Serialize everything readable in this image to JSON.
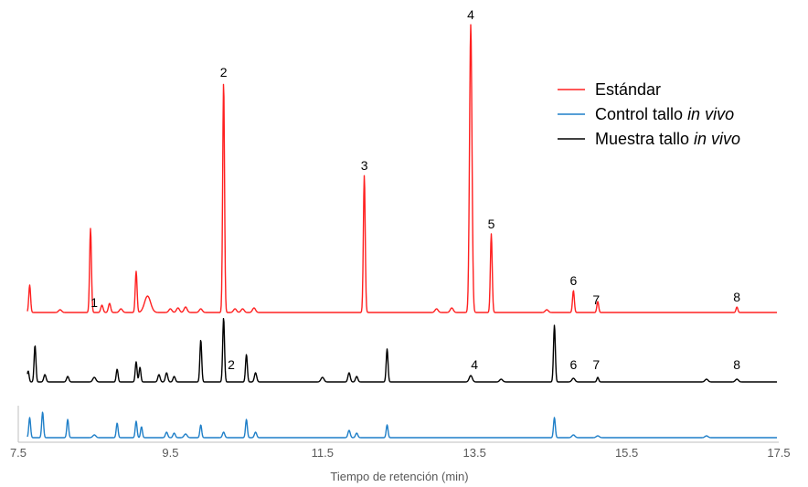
{
  "chart_data": {
    "type": "line",
    "title": "",
    "xlabel": "Tiempo de retención (min)",
    "ylabel": "",
    "xlim": [
      7.5,
      17.5
    ],
    "x_ticks": [
      7.5,
      9.5,
      11.5,
      13.5,
      15.5,
      17.5
    ],
    "x_tick_labels": [
      "7.5",
      "9.5",
      "11.5",
      "13.5",
      "15.5",
      "17.5"
    ],
    "grid": false,
    "legend_position": "top-right",
    "colors": {
      "estandar": "#ff2020",
      "control": "#1f7fc8",
      "muestra": "#000000"
    },
    "legend": [
      {
        "series": "estandar",
        "text": "Estándar",
        "italic": ""
      },
      {
        "series": "control",
        "text": "Control tallo ",
        "italic": "in vivo"
      },
      {
        "series": "muestra",
        "text": "Muestra tallo ",
        "italic": "in vivo"
      }
    ],
    "series": [
      {
        "key": "estandar",
        "name": "Estándar",
        "baseline": 342,
        "peaks": [
          [
            7.65,
            30,
            0.012
          ],
          [
            8.05,
            3,
            0.02
          ],
          [
            8.45,
            92,
            0.012
          ],
          [
            8.6,
            8,
            0.015
          ],
          [
            8.7,
            10,
            0.015
          ],
          [
            8.85,
            4,
            0.02
          ],
          [
            9.05,
            45,
            0.012
          ],
          [
            9.2,
            18,
            0.04
          ],
          [
            9.5,
            4,
            0.02
          ],
          [
            9.6,
            5,
            0.02
          ],
          [
            9.7,
            6,
            0.02
          ],
          [
            9.9,
            4,
            0.02
          ],
          [
            10.2,
            252,
            0.012
          ],
          [
            10.35,
            4,
            0.02
          ],
          [
            10.45,
            4,
            0.02
          ],
          [
            10.6,
            5,
            0.02
          ],
          [
            12.05,
            150,
            0.012
          ],
          [
            13.0,
            4,
            0.02
          ],
          [
            13.2,
            5,
            0.02
          ],
          [
            13.45,
            315,
            0.016
          ],
          [
            13.72,
            86,
            0.012
          ],
          [
            14.45,
            3,
            0.02
          ],
          [
            14.8,
            24,
            0.012
          ],
          [
            15.12,
            12,
            0.012
          ],
          [
            16.95,
            6,
            0.012
          ]
        ],
        "peak_labels": [
          {
            "t": "1",
            "x": 8.5,
            "dy": -6
          },
          {
            "t": "2",
            "x": 10.2,
            "dy": -6
          },
          {
            "t": "3",
            "x": 12.05,
            "dy": -6
          },
          {
            "t": "4",
            "x": 13.45,
            "dy": -6
          },
          {
            "t": "5",
            "x": 13.72,
            "dy": -6
          },
          {
            "t": "6",
            "x": 14.8,
            "dy": -6
          },
          {
            "t": "7",
            "x": 15.1,
            "dy": -6
          },
          {
            "t": "8",
            "x": 16.95,
            "dy": -6
          }
        ]
      },
      {
        "key": "muestra",
        "name": "Muestra tallo in vivo",
        "baseline": 418,
        "peaks": [
          [
            7.63,
            12,
            0.012
          ],
          [
            7.72,
            40,
            0.012
          ],
          [
            7.85,
            8,
            0.015
          ],
          [
            8.15,
            6,
            0.015
          ],
          [
            8.5,
            5,
            0.02
          ],
          [
            8.8,
            14,
            0.012
          ],
          [
            9.05,
            22,
            0.012
          ],
          [
            9.1,
            16,
            0.012
          ],
          [
            9.35,
            8,
            0.015
          ],
          [
            9.45,
            10,
            0.015
          ],
          [
            9.55,
            6,
            0.015
          ],
          [
            9.9,
            46,
            0.012
          ],
          [
            10.2,
            70,
            0.012
          ],
          [
            10.5,
            30,
            0.012
          ],
          [
            10.62,
            10,
            0.015
          ],
          [
            11.5,
            5,
            0.02
          ],
          [
            11.85,
            10,
            0.015
          ],
          [
            11.95,
            6,
            0.015
          ],
          [
            12.35,
            36,
            0.012
          ],
          [
            13.45,
            7,
            0.02
          ],
          [
            13.85,
            3,
            0.02
          ],
          [
            14.55,
            62,
            0.012
          ],
          [
            14.8,
            4,
            0.02
          ],
          [
            15.12,
            5,
            0.012
          ],
          [
            16.55,
            3,
            0.02
          ],
          [
            16.95,
            3,
            0.02
          ]
        ],
        "peak_labels": [
          {
            "t": "2",
            "x": 10.3,
            "dy": 0
          },
          {
            "t": "4",
            "x": 13.5,
            "dy": 0
          },
          {
            "t": "6",
            "x": 14.8,
            "dy": 0
          },
          {
            "t": "7",
            "x": 15.1,
            "dy": 0
          },
          {
            "t": "8",
            "x": 16.95,
            "dy": 0
          }
        ]
      },
      {
        "key": "control",
        "name": "Control tallo in vivo",
        "baseline": 479,
        "peaks": [
          [
            7.65,
            22,
            0.012
          ],
          [
            7.82,
            28,
            0.012
          ],
          [
            8.15,
            20,
            0.012
          ],
          [
            8.5,
            3,
            0.02
          ],
          [
            8.8,
            16,
            0.012
          ],
          [
            9.05,
            18,
            0.012
          ],
          [
            9.12,
            12,
            0.012
          ],
          [
            9.45,
            6,
            0.015
          ],
          [
            9.55,
            5,
            0.015
          ],
          [
            9.7,
            4,
            0.02
          ],
          [
            9.9,
            14,
            0.012
          ],
          [
            10.2,
            6,
            0.015
          ],
          [
            10.5,
            20,
            0.012
          ],
          [
            10.62,
            6,
            0.015
          ],
          [
            11.85,
            8,
            0.015
          ],
          [
            11.95,
            5,
            0.015
          ],
          [
            12.35,
            14,
            0.012
          ],
          [
            14.55,
            22,
            0.012
          ],
          [
            14.8,
            3,
            0.02
          ],
          [
            15.12,
            2,
            0.02
          ],
          [
            16.55,
            2,
            0.02
          ]
        ],
        "peak_labels": []
      }
    ]
  }
}
